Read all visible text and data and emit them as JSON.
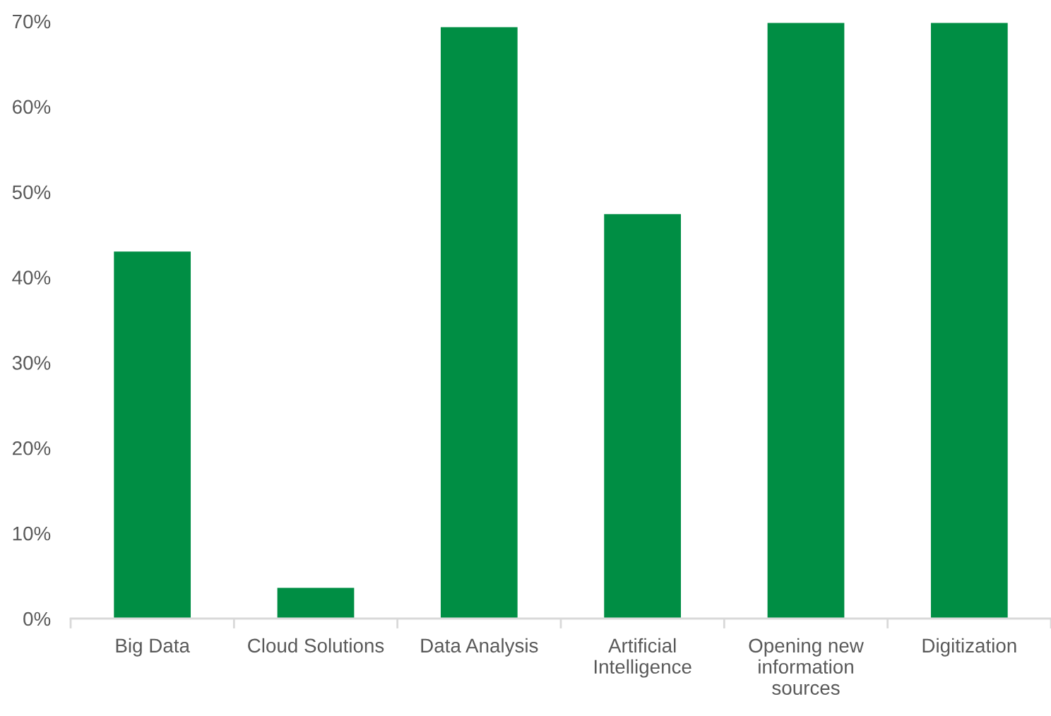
{
  "chart_data": {
    "type": "bar",
    "categories": [
      "Big Data",
      "Cloud Solutions",
      "Data Analysis",
      "Artificial\nIntelligence",
      "Opening new\ninformation\nsources",
      "Digitization"
    ],
    "values": [
      43,
      3.6,
      69.3,
      47.4,
      69.8,
      69.8
    ],
    "color": "#008e44",
    "ylim": [
      0,
      70
    ],
    "yticks": [
      {
        "value": 0,
        "label": "0%"
      },
      {
        "value": 10,
        "label": "10%"
      },
      {
        "value": 20,
        "label": "20%"
      },
      {
        "value": 30,
        "label": "30%"
      },
      {
        "value": 40,
        "label": "40%"
      },
      {
        "value": 50,
        "label": "50%"
      },
      {
        "value": 60,
        "label": "60%"
      },
      {
        "value": 70,
        "label": "70%"
      }
    ]
  }
}
